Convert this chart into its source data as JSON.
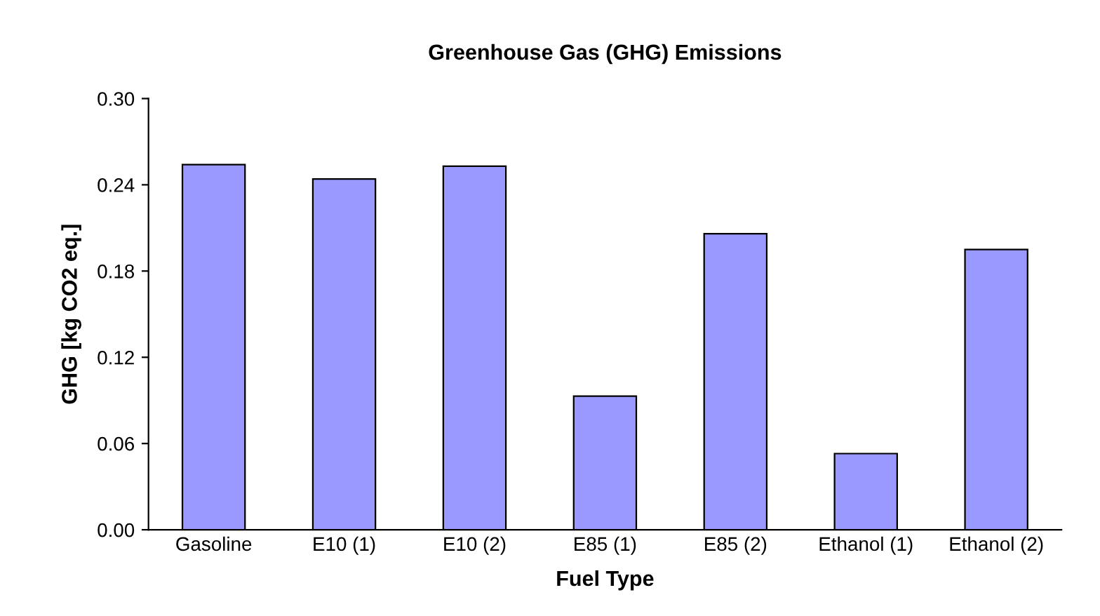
{
  "chart_data": {
    "type": "bar",
    "title": "Greenhouse Gas (GHG) Emissions",
    "xlabel": "Fuel Type",
    "ylabel": "GHG [kg CO2 eq.]",
    "categories": [
      "Gasoline",
      "E10 (1)",
      "E10 (2)",
      "E85 (1)",
      "E85 (2)",
      "Ethanol (1)",
      "Ethanol (2)"
    ],
    "values": [
      0.254,
      0.244,
      0.253,
      0.093,
      0.206,
      0.053,
      0.195
    ],
    "color": "#9999ff",
    "ylim": [
      0,
      0.3
    ],
    "yticks": [
      {
        "value": 0,
        "label": "0.00"
      },
      {
        "value": 0.06,
        "label": "0.06"
      },
      {
        "value": 0.12,
        "label": "0.12"
      },
      {
        "value": 0.18,
        "label": "0.18"
      },
      {
        "value": 0.24,
        "label": "0.24"
      },
      {
        "value": 0.3,
        "label": "0.30"
      }
    ],
    "grid": false,
    "legend": false
  }
}
